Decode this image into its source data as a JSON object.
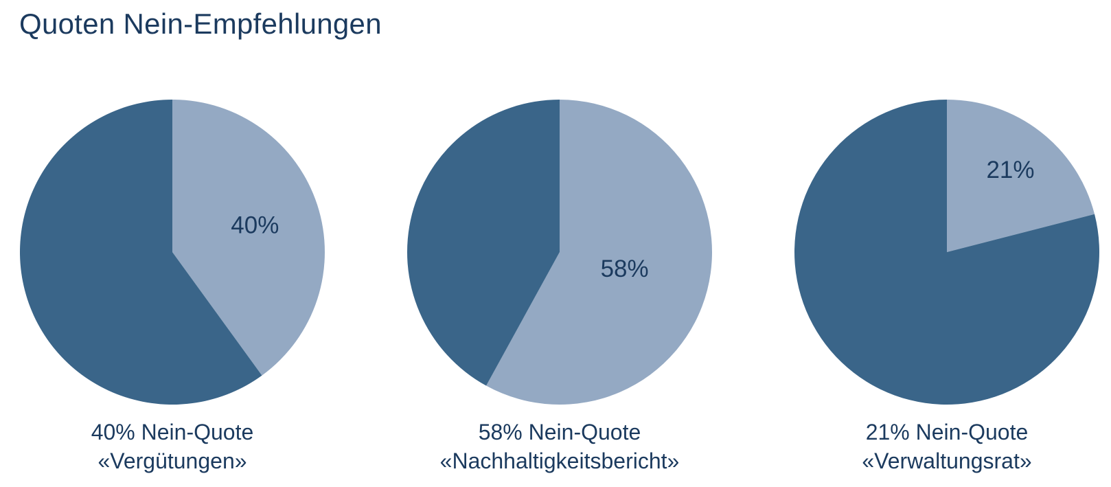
{
  "title": "Quoten Nein-Empfehlungen",
  "colors": {
    "dark_slice": "#3A6589",
    "light_slice": "#94A9C3",
    "text": "#1B3A5E",
    "background": "#FFFFFF"
  },
  "chart_data": [
    {
      "type": "pie",
      "values": [
        40,
        60
      ],
      "slice_labels": [
        "40%",
        ""
      ],
      "highlight_percent": 40,
      "slice_label": "40%",
      "caption_line1": "40% Nein-Quote",
      "caption_line2": "«Vergütungen»",
      "start_angle_deg": 0,
      "direction": "clockwise",
      "legend": "none"
    },
    {
      "type": "pie",
      "values": [
        58,
        42
      ],
      "slice_labels": [
        "58%",
        ""
      ],
      "highlight_percent": 58,
      "slice_label": "58%",
      "caption_line1": "58% Nein-Quote",
      "caption_line2": "«Nachhaltigkeitsbericht»",
      "start_angle_deg": 0,
      "direction": "clockwise",
      "legend": "none"
    },
    {
      "type": "pie",
      "values": [
        21,
        79
      ],
      "slice_labels": [
        "21%",
        ""
      ],
      "highlight_percent": 21,
      "slice_label": "21%",
      "caption_line1": "21% Nein-Quote",
      "caption_line2": "«Verwaltungsrat»",
      "start_angle_deg": 0,
      "direction": "clockwise",
      "legend": "none"
    }
  ]
}
